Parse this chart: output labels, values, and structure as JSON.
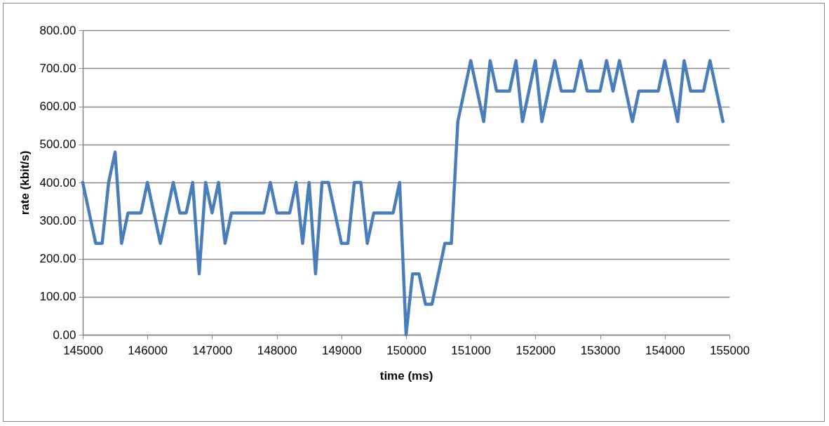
{
  "chart_data": {
    "type": "line",
    "xlabel": "time (ms)",
    "ylabel": "rate (kbit/s)",
    "x": [
      145000,
      145100,
      145200,
      145300,
      145400,
      145500,
      145600,
      145700,
      145800,
      145900,
      146000,
      146100,
      146200,
      146300,
      146400,
      146500,
      146600,
      146700,
      146800,
      146900,
      147000,
      147100,
      147200,
      147300,
      147400,
      147500,
      147600,
      147700,
      147800,
      147900,
      148000,
      148100,
      148200,
      148300,
      148400,
      148500,
      148600,
      148700,
      148800,
      148900,
      149000,
      149100,
      149200,
      149300,
      149400,
      149500,
      149600,
      149700,
      149800,
      149900,
      150000,
      150100,
      150200,
      150300,
      150400,
      150500,
      150600,
      150700,
      150800,
      150900,
      151000,
      151100,
      151200,
      151300,
      151400,
      151500,
      151600,
      151700,
      151800,
      151900,
      152000,
      152100,
      152200,
      152300,
      152400,
      152500,
      152600,
      152700,
      152800,
      152900,
      153000,
      153100,
      153200,
      153300,
      153400,
      153500,
      153600,
      153700,
      153800,
      153900,
      154000,
      154100,
      154200,
      154300,
      154400,
      154500,
      154600,
      154700,
      154800,
      154900
    ],
    "series": [
      {
        "color": "#4a7ebb",
        "values": [
          400,
          320,
          240,
          240,
          400,
          480,
          240,
          320,
          320,
          320,
          400,
          320,
          240,
          320,
          400,
          320,
          320,
          400,
          160,
          400,
          320,
          400,
          240,
          320,
          320,
          320,
          320,
          320,
          320,
          400,
          320,
          320,
          320,
          400,
          240,
          400,
          160,
          400,
          400,
          320,
          240,
          240,
          400,
          400,
          240,
          320,
          320,
          320,
          320,
          400,
          0,
          160,
          160,
          80,
          80,
          160,
          240,
          240,
          560,
          640,
          720,
          640,
          560,
          720,
          640,
          640,
          640,
          720,
          560,
          640,
          720,
          560,
          640,
          720,
          640,
          640,
          640,
          720,
          640,
          640,
          640,
          720,
          640,
          720,
          640,
          560,
          640,
          640,
          640,
          640,
          720,
          640,
          560,
          720,
          640,
          640,
          640,
          720,
          640,
          560
        ]
      }
    ],
    "xlim": [
      145000,
      155000
    ],
    "xticks": [
      145000,
      146000,
      147000,
      148000,
      149000,
      150000,
      151000,
      152000,
      153000,
      154000,
      155000
    ],
    "ylim": [
      0,
      800
    ],
    "yticks": [
      {
        "value": 0,
        "label": "0.00"
      },
      {
        "value": 100,
        "label": "100.00"
      },
      {
        "value": 200,
        "label": "200.00"
      },
      {
        "value": 300,
        "label": "300.00"
      },
      {
        "value": 400,
        "label": "400.00"
      },
      {
        "value": 500,
        "label": "500.00"
      },
      {
        "value": 600,
        "label": "600.00"
      },
      {
        "value": 700,
        "label": "700.00"
      },
      {
        "value": 800,
        "label": "800.00"
      }
    ],
    "grid": "y",
    "marker": "none",
    "line_style": "solid"
  }
}
